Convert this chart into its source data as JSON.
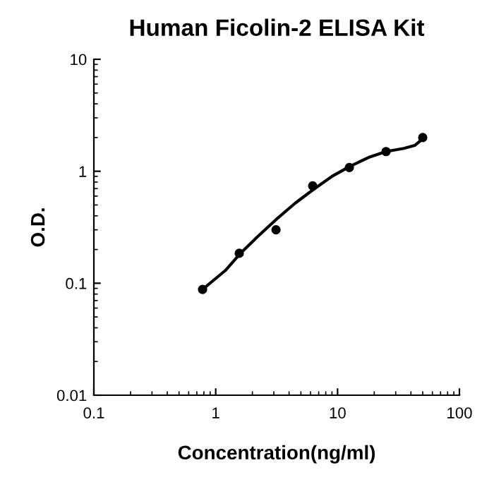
{
  "chart_data": {
    "type": "scatter",
    "title": "Human Ficolin-2 ELISA Kit",
    "xlabel": "Concentration(ng/ml)",
    "ylabel": "O.D.",
    "log": "xy",
    "xlim": [
      0.1,
      100
    ],
    "ylim": [
      0.01,
      10
    ],
    "xticks": [
      0.1,
      1,
      10,
      100
    ],
    "yticks": [
      0.01,
      0.1,
      1,
      10
    ],
    "grid": false,
    "legend": false,
    "series": [
      {
        "color": "#000000",
        "marker": "circle",
        "x": [
          0.78,
          1.56,
          3.125,
          6.25,
          12.5,
          25,
          50
        ],
        "values": [
          0.088,
          0.185,
          0.3,
          0.74,
          1.08,
          1.5,
          2.0
        ]
      },
      {
        "type": "line",
        "color": "#000000",
        "marker": "none",
        "x": [
          0.78,
          1.2,
          1.56,
          2.2,
          3.125,
          4.5,
          6.25,
          9,
          12.5,
          18,
          25,
          35,
          43,
          50
        ],
        "values": [
          0.088,
          0.13,
          0.18,
          0.26,
          0.37,
          0.52,
          0.68,
          0.9,
          1.1,
          1.33,
          1.5,
          1.6,
          1.7,
          1.95
        ]
      }
    ]
  }
}
